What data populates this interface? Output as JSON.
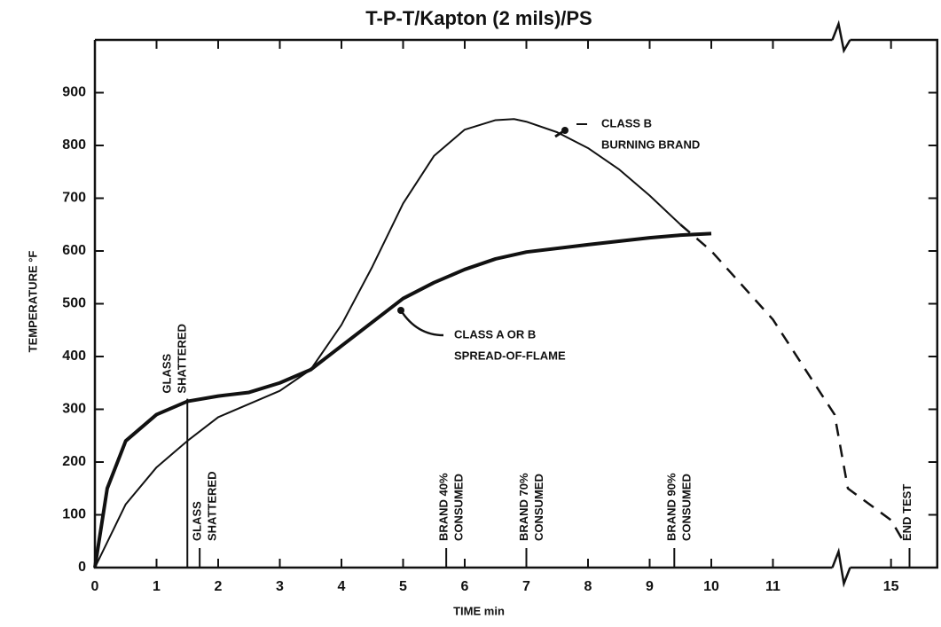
{
  "chart_data": {
    "type": "line",
    "title": "T-P-T/Kapton (2 mils)/PS",
    "x_label": "TIME min",
    "y_label": "TEMPERATURE °F",
    "xlim": [
      0,
      15.75
    ],
    "ylim": [
      0,
      1000
    ],
    "x_break": [
      12,
      14.3
    ],
    "xticks": [
      0,
      1,
      2,
      3,
      4,
      5,
      6,
      7,
      8,
      9,
      10,
      11,
      15
    ],
    "yticks": [
      0,
      100,
      200,
      300,
      400,
      500,
      600,
      700,
      800,
      900
    ],
    "series": [
      {
        "color": "#111111",
        "width": 4,
        "style": "solid",
        "x": [
          0,
          0.2,
          0.5,
          1,
          1.5,
          2,
          2.5,
          3,
          3.5,
          4,
          4.5,
          5,
          5.5,
          6,
          6.5,
          7,
          8,
          9,
          9.5,
          10
        ],
        "values": [
          0,
          150,
          240,
          290,
          315,
          325,
          332,
          350,
          375,
          420,
          465,
          510,
          540,
          565,
          585,
          598,
          612,
          625,
          630,
          633
        ]
      },
      {
        "color": "#111111",
        "width": 2,
        "style": "solid",
        "x": [
          0,
          0.5,
          1,
          1.5,
          2,
          2.5,
          3,
          3.5,
          4,
          4.5,
          5,
          5.5,
          6,
          6.5,
          6.8,
          7,
          7.5,
          8,
          8.5,
          9,
          9.5
        ],
        "values": [
          0,
          120,
          190,
          240,
          285,
          310,
          335,
          375,
          460,
          570,
          690,
          780,
          830,
          848,
          850,
          845,
          825,
          795,
          755,
          705,
          650
        ]
      },
      {
        "color": "#111111",
        "width": 2.5,
        "style": "dashed",
        "x": [
          9.5,
          10,
          11,
          12,
          14.3,
          15,
          15.2
        ],
        "values": [
          650,
          600,
          470,
          290,
          150,
          90,
          50
        ]
      }
    ],
    "events": [
      {
        "x": 1.5,
        "label": [
          "GLASS",
          "SHATTERED"
        ],
        "position": "upper"
      },
      {
        "x": 1.7,
        "label": [
          "GLASS",
          "SHATTERED"
        ],
        "position": "lower"
      },
      {
        "x": 5.7,
        "label": [
          "BRAND 40%",
          "CONSUMED"
        ],
        "position": "lower"
      },
      {
        "x": 7.0,
        "label": [
          "BRAND 70%",
          "CONSUMED"
        ],
        "position": "lower"
      },
      {
        "x": 9.4,
        "label": [
          "BRAND 90%",
          "CONSUMED"
        ],
        "position": "lower"
      },
      {
        "x": 15.3,
        "label": [
          "END TEST"
        ],
        "position": "lower"
      }
    ],
    "annotations": [
      [
        "CLASS B",
        "BURNING BRAND"
      ],
      [
        "CLASS A OR B",
        "SPREAD-OF-FLAME"
      ]
    ]
  }
}
